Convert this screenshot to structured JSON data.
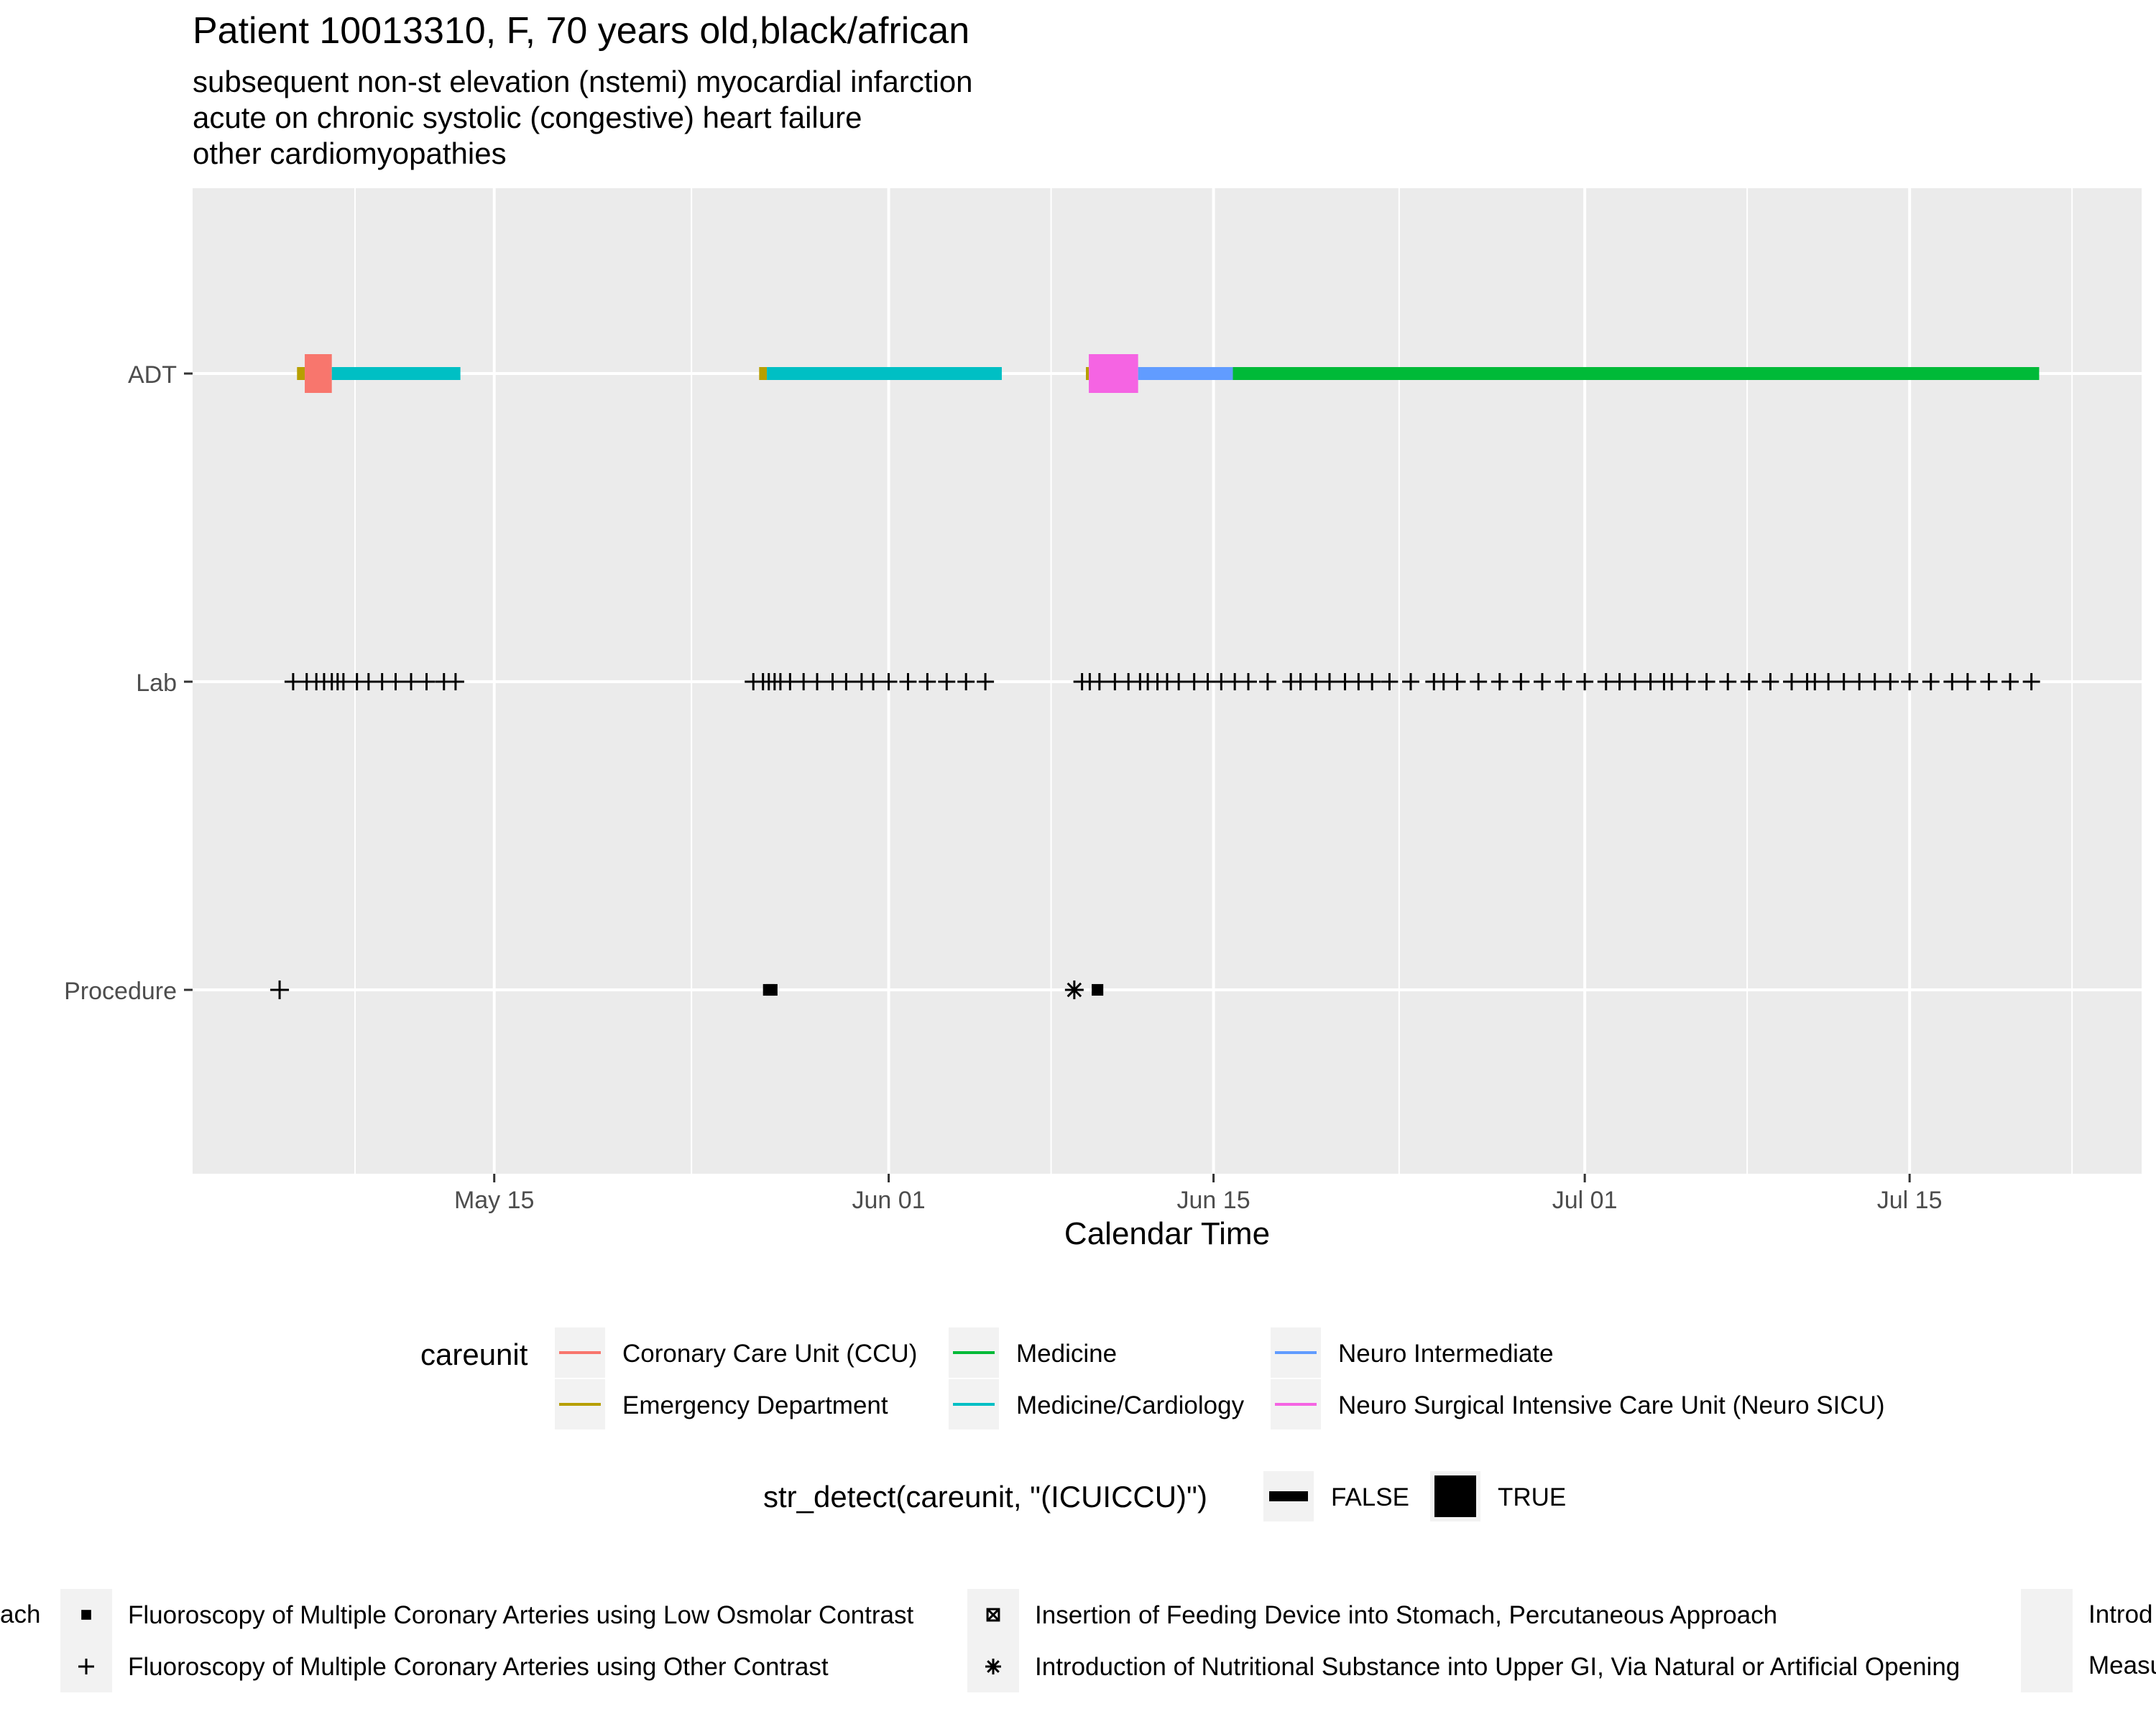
{
  "chart_data": {
    "type": "timeline",
    "title": "Patient 10013310, F, 70 years old,black/african",
    "subtitle_lines": [
      "subsequent non-st elevation (nstemi) myocardial infarction",
      "acute on chronic systolic (congestive) heart failure",
      "other cardiomyopathies"
    ],
    "xlabel": "Calendar Time",
    "x_ticks": [
      {
        "label": "May 15",
        "date": "2153-05-15"
      },
      {
        "label": "Jun 01",
        "date": "2153-06-01"
      },
      {
        "label": "Jun 15",
        "date": "2153-06-15"
      },
      {
        "label": "Jul 01",
        "date": "2153-07-01"
      },
      {
        "label": "Jul 15",
        "date": "2153-07-15"
      }
    ],
    "x_range": [
      "2153-05-02",
      "2153-07-25"
    ],
    "y_categories": [
      "ADT",
      "Lab",
      "Procedure"
    ],
    "adt_segments": [
      {
        "start": "2153-05-06T12:00",
        "end": "2153-05-06T20:00",
        "careunit": "Emergency Department",
        "icu": false
      },
      {
        "start": "2153-05-06T20:00",
        "end": "2153-05-08T00:00",
        "careunit": "Coronary Care Unit (CCU)",
        "icu": true
      },
      {
        "start": "2153-05-08T00:00",
        "end": "2153-05-13T13:00",
        "careunit": "Medicine/Cardiology",
        "icu": false
      },
      {
        "start": "2153-05-26T10:00",
        "end": "2153-05-26T18:00",
        "careunit": "Emergency Department",
        "icu": false
      },
      {
        "start": "2153-05-26T18:00",
        "end": "2153-06-05T21:00",
        "careunit": "Medicine/Cardiology",
        "icu": false
      },
      {
        "start": "2153-06-09T12:00",
        "end": "2153-06-09T15:00",
        "careunit": "Emergency Department",
        "icu": false
      },
      {
        "start": "2153-06-09T15:00",
        "end": "2153-06-11T18:00",
        "careunit": "Neuro Surgical Intensive Care Unit (Neuro SICU)",
        "icu": true
      },
      {
        "start": "2153-06-11T18:00",
        "end": "2153-06-15T20:00",
        "careunit": "Neuro Intermediate",
        "icu": false
      },
      {
        "start": "2153-06-15T20:00",
        "end": "2153-07-20T14:00",
        "careunit": "Medicine",
        "icu": false
      }
    ],
    "lab_events": [
      "2153-05-06T08:00",
      "2153-05-06T22:00",
      "2153-05-07T08:00",
      "2153-05-07T16:00",
      "2153-05-08T00:00",
      "2153-05-08T06:00",
      "2153-05-08T12:00",
      "2153-05-09T02:00",
      "2153-05-09T14:00",
      "2153-05-10T04:00",
      "2153-05-10T18:00",
      "2153-05-11T10:00",
      "2153-05-12T02:00",
      "2153-05-12T20:00",
      "2153-05-13T08:00",
      "2153-05-26T04:00",
      "2153-05-26T14:00",
      "2153-05-26T20:00",
      "2153-05-27T02:00",
      "2153-05-27T08:00",
      "2153-05-27T18:00",
      "2153-05-28T08:00",
      "2153-05-28T22:00",
      "2153-05-29T14:00",
      "2153-05-30T04:00",
      "2153-05-30T20:00",
      "2153-05-31T08:00",
      "2153-06-01T00:00",
      "2153-06-01T20:00",
      "2153-06-02T16:00",
      "2153-06-03T12:00",
      "2153-06-04T08:00",
      "2153-06-05T04:00",
      "2153-06-09T08:00",
      "2153-06-09T16:00",
      "2153-06-10T02:00",
      "2153-06-10T18:00",
      "2153-06-11T08:00",
      "2153-06-11T20:00",
      "2153-06-12T04:00",
      "2153-06-12T14:00",
      "2153-06-13T00:00",
      "2153-06-13T12:00",
      "2153-06-14T04:00",
      "2153-06-14T18:00",
      "2153-06-15T08:00",
      "2153-06-15T22:00",
      "2153-06-16T12:00",
      "2153-06-17T08:00",
      "2153-06-18T08:00",
      "2153-06-18T18:00",
      "2153-06-19T10:00",
      "2153-06-20T00:00",
      "2153-06-20T16:00",
      "2153-06-21T06:00",
      "2153-06-21T20:00",
      "2153-06-22T14:00",
      "2153-06-23T12:00",
      "2153-06-24T12:00",
      "2153-06-24T22:00",
      "2153-06-25T12:00",
      "2153-06-26T10:00",
      "2153-06-27T08:00",
      "2153-06-28T06:00",
      "2153-06-29T04:00",
      "2153-06-30T02:00",
      "2153-07-01T00:00",
      "2153-07-01T22:00",
      "2153-07-02T12:00",
      "2153-07-03T04:00",
      "2153-07-03T20:00",
      "2153-07-04T10:00",
      "2153-07-04T18:00",
      "2153-07-05T10:00",
      "2153-07-06T06:00",
      "2153-07-07T04:00",
      "2153-07-08T02:00",
      "2153-07-09T00:00",
      "2153-07-09T22:00",
      "2153-07-10T14:00",
      "2153-07-10T22:00",
      "2153-07-11T12:00",
      "2153-07-12T04:00",
      "2153-07-12T20:00",
      "2153-07-13T12:00",
      "2153-07-14T04:00",
      "2153-07-15T00:00",
      "2153-07-15T22:00",
      "2153-07-16T20:00",
      "2153-07-17T12:00",
      "2153-07-18T10:00",
      "2153-07-19T08:00",
      "2153-07-20T06:00"
    ],
    "procedures": [
      {
        "time": "2153-05-05T18:00",
        "shape": "plus",
        "label": "Fluoroscopy of Multiple Coronary Arteries using Other Contrast"
      },
      {
        "time": "2153-05-26T20:00",
        "shape": "square",
        "label": "Fluoroscopy of Multiple Coronary Arteries using Low Osmolar Contrast"
      },
      {
        "time": "2153-05-26T23:00",
        "shape": "square",
        "label": "Fluoroscopy of Multiple Coronary Arteries using Low Osmolar Contrast"
      },
      {
        "time": "2153-06-09T00:00",
        "shape": "asterisk",
        "label": "Introduction of Nutritional Substance into Upper GI, Via Natural or Artificial Opening"
      },
      {
        "time": "2153-06-10T00:00",
        "shape": "square",
        "label": "Fluoroscopy of Multiple Coronary Arteries using Low Osmolar Contrast"
      }
    ],
    "careunit_legend": {
      "title": "careunit",
      "entries": [
        {
          "name": "Coronary Care Unit (CCU)",
          "color": "#F8766D"
        },
        {
          "name": "Emergency Department",
          "color": "#B79F00"
        },
        {
          "name": "Medicine",
          "color": "#00BA38"
        },
        {
          "name": "Medicine/Cardiology",
          "color": "#00BFC4"
        },
        {
          "name": "Neuro Intermediate",
          "color": "#619CFF"
        },
        {
          "name": "Neuro Surgical Intensive Care Unit (Neuro SICU)",
          "color": "#F564E3"
        }
      ]
    },
    "icu_legend": {
      "title": "str_detect(careunit, \"(ICUICCU)\")",
      "entries": [
        "FALSE",
        "TRUE"
      ]
    },
    "procedure_legend": {
      "entries": [
        {
          "shape": "square",
          "label": "Fluoroscopy of Multiple Coronary Arteries using Low Osmolar Contrast"
        },
        {
          "shape": "plus",
          "label": "Fluoroscopy of Multiple Coronary Arteries using Other Contrast"
        },
        {
          "shape": "boxx",
          "label": "Insertion of Feeding Device into Stomach, Percutaneous Approach"
        },
        {
          "shape": "asterisk",
          "label": "Introduction of Nutritional Substance into Upper GI, Via Natural or Artificial Opening"
        }
      ],
      "clipped_left": "ach",
      "clipped_right": [
        "Introd",
        "Measu"
      ]
    }
  }
}
